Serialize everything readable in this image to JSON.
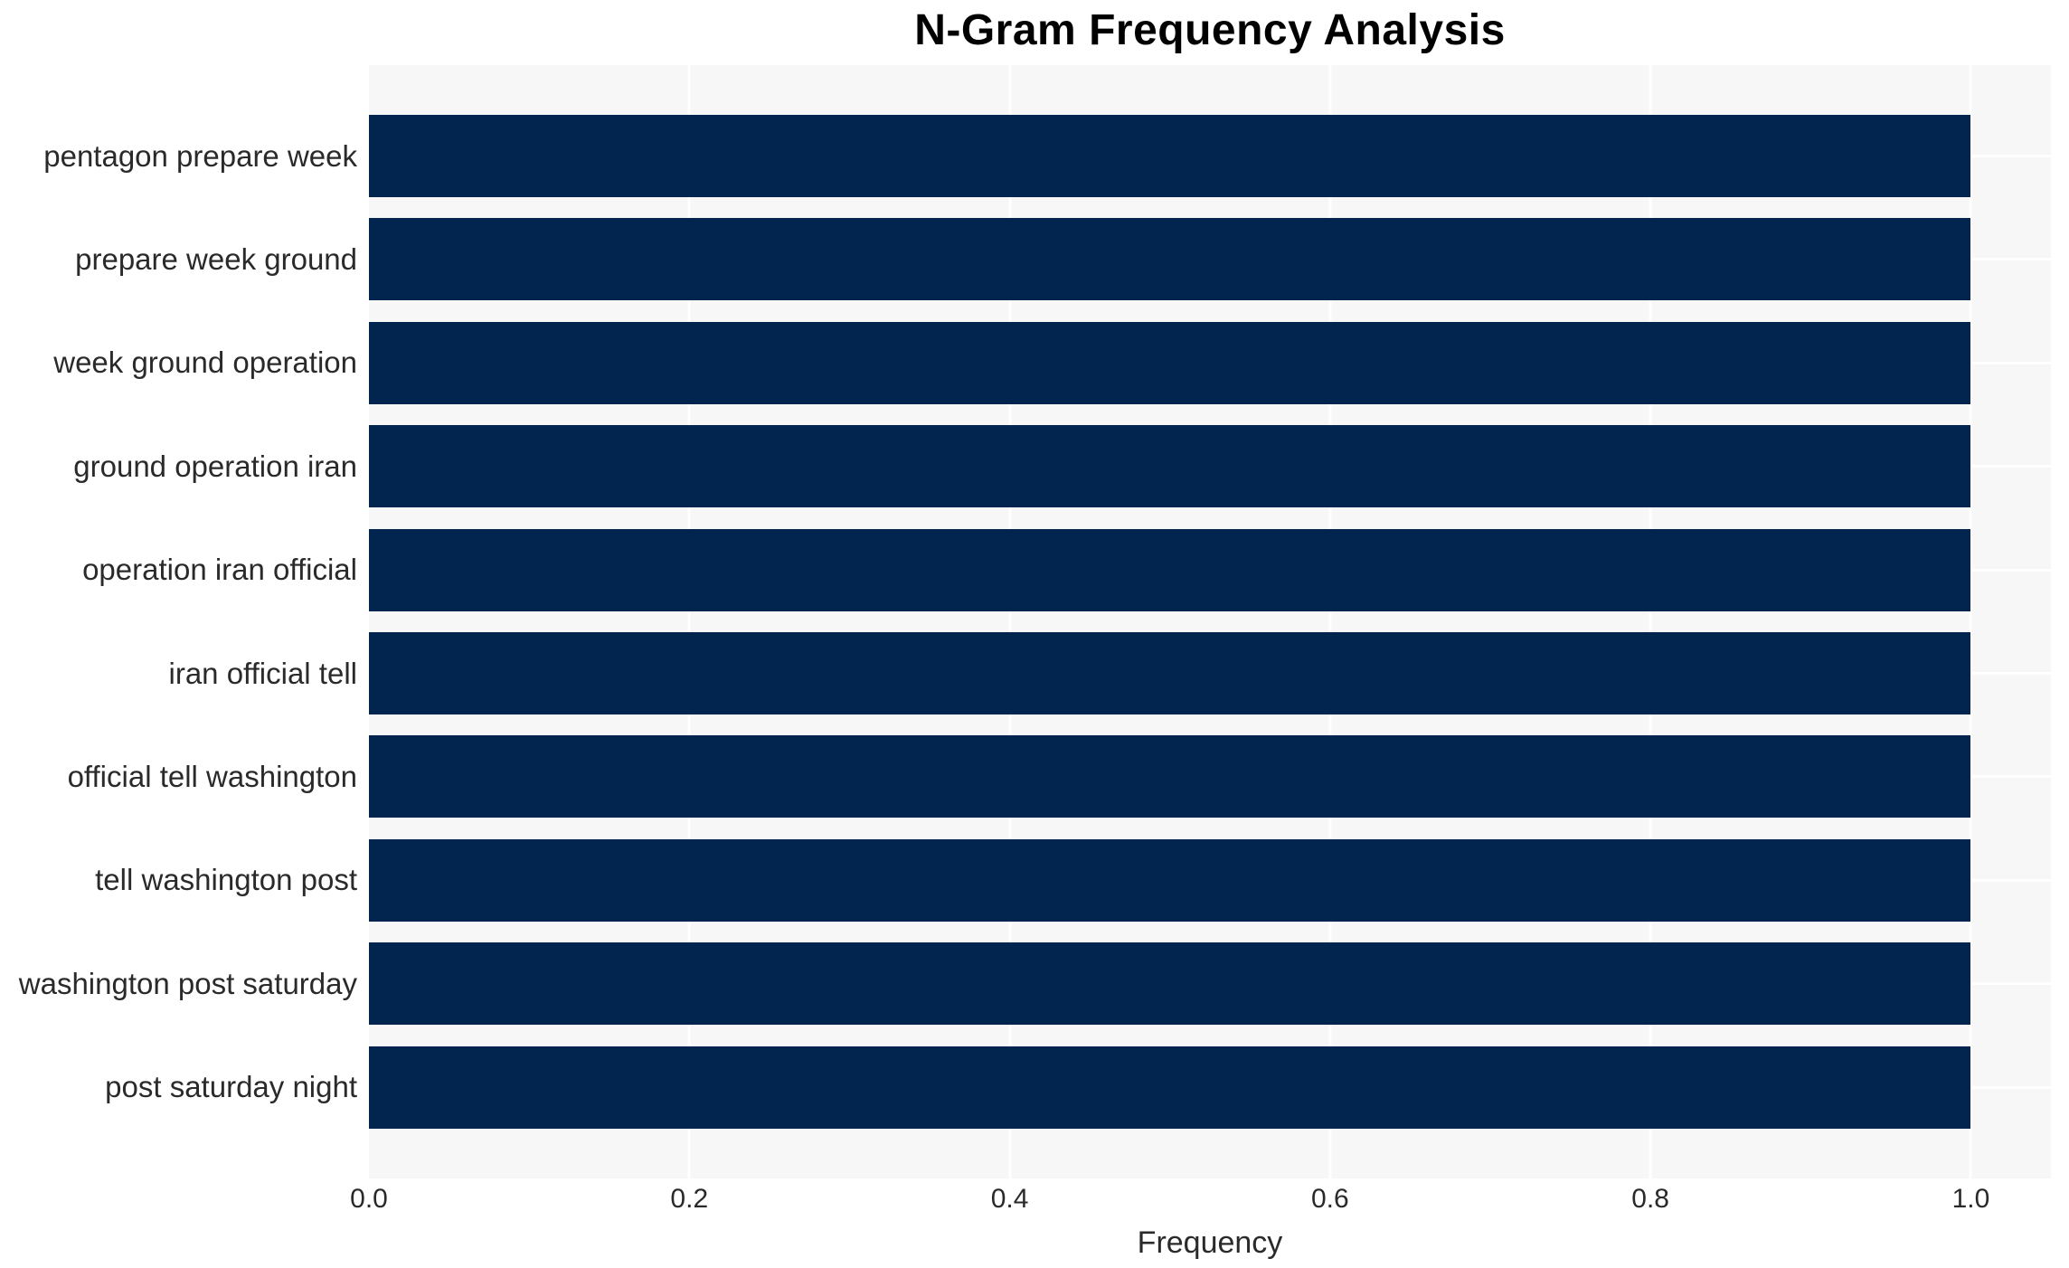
{
  "chart_data": {
    "type": "bar",
    "orientation": "horizontal",
    "title": "N-Gram Frequency Analysis",
    "xlabel": "Frequency",
    "ylabel": "",
    "categories": [
      "pentagon prepare week",
      "prepare week ground",
      "week ground operation",
      "ground operation iran",
      "operation iran official",
      "iran official tell",
      "official tell washington",
      "tell washington post",
      "washington post saturday",
      "post saturday night"
    ],
    "values": [
      1.0,
      1.0,
      1.0,
      1.0,
      1.0,
      1.0,
      1.0,
      1.0,
      1.0,
      1.0
    ],
    "xlim": [
      0,
      1.05
    ],
    "xtick_labels": [
      "0.0",
      "0.2",
      "0.4",
      "0.6",
      "0.8",
      "1.0"
    ],
    "xtick_values": [
      0.0,
      0.2,
      0.4,
      0.6,
      0.8,
      1.0
    ],
    "grid": true,
    "legend": false,
    "plot_background": "#f7f7f7",
    "colors": {
      "bar": "#02254f",
      "plot_bg": "#f7f7f7",
      "gridline": "#ffffff",
      "text": "#2a2a2a",
      "title": "#000000",
      "page_bg": "#ffffff"
    }
  }
}
